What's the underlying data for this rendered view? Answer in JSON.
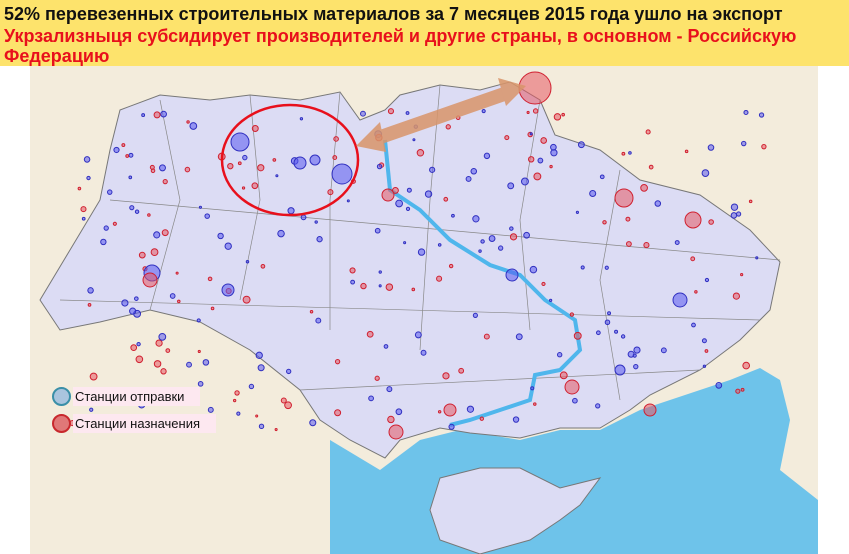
{
  "header": {
    "title": "52% перевезенных строительных материалов за 7 месяцев 2015 года ушло на экспорт",
    "subtitle": "Укрзализныця субсидирует производителей и другие страны, в основном - Российскую Федерацию"
  },
  "legend": {
    "items": [
      {
        "label": "Станции отправки",
        "color": "#a9c4de",
        "border": "#3a8fa8"
      },
      {
        "label": "Станции назначения",
        "color": "#e07878",
        "border": "#c8282d"
      }
    ]
  },
  "colors": {
    "header_bg": "#fde36c",
    "land": "#dcdcf4",
    "outside": "#f3ecdc",
    "sea": "#6ec3ea",
    "river": "#4fb6ec",
    "arrow": "#d9956a",
    "highlight_circle": "#e8101c"
  }
}
